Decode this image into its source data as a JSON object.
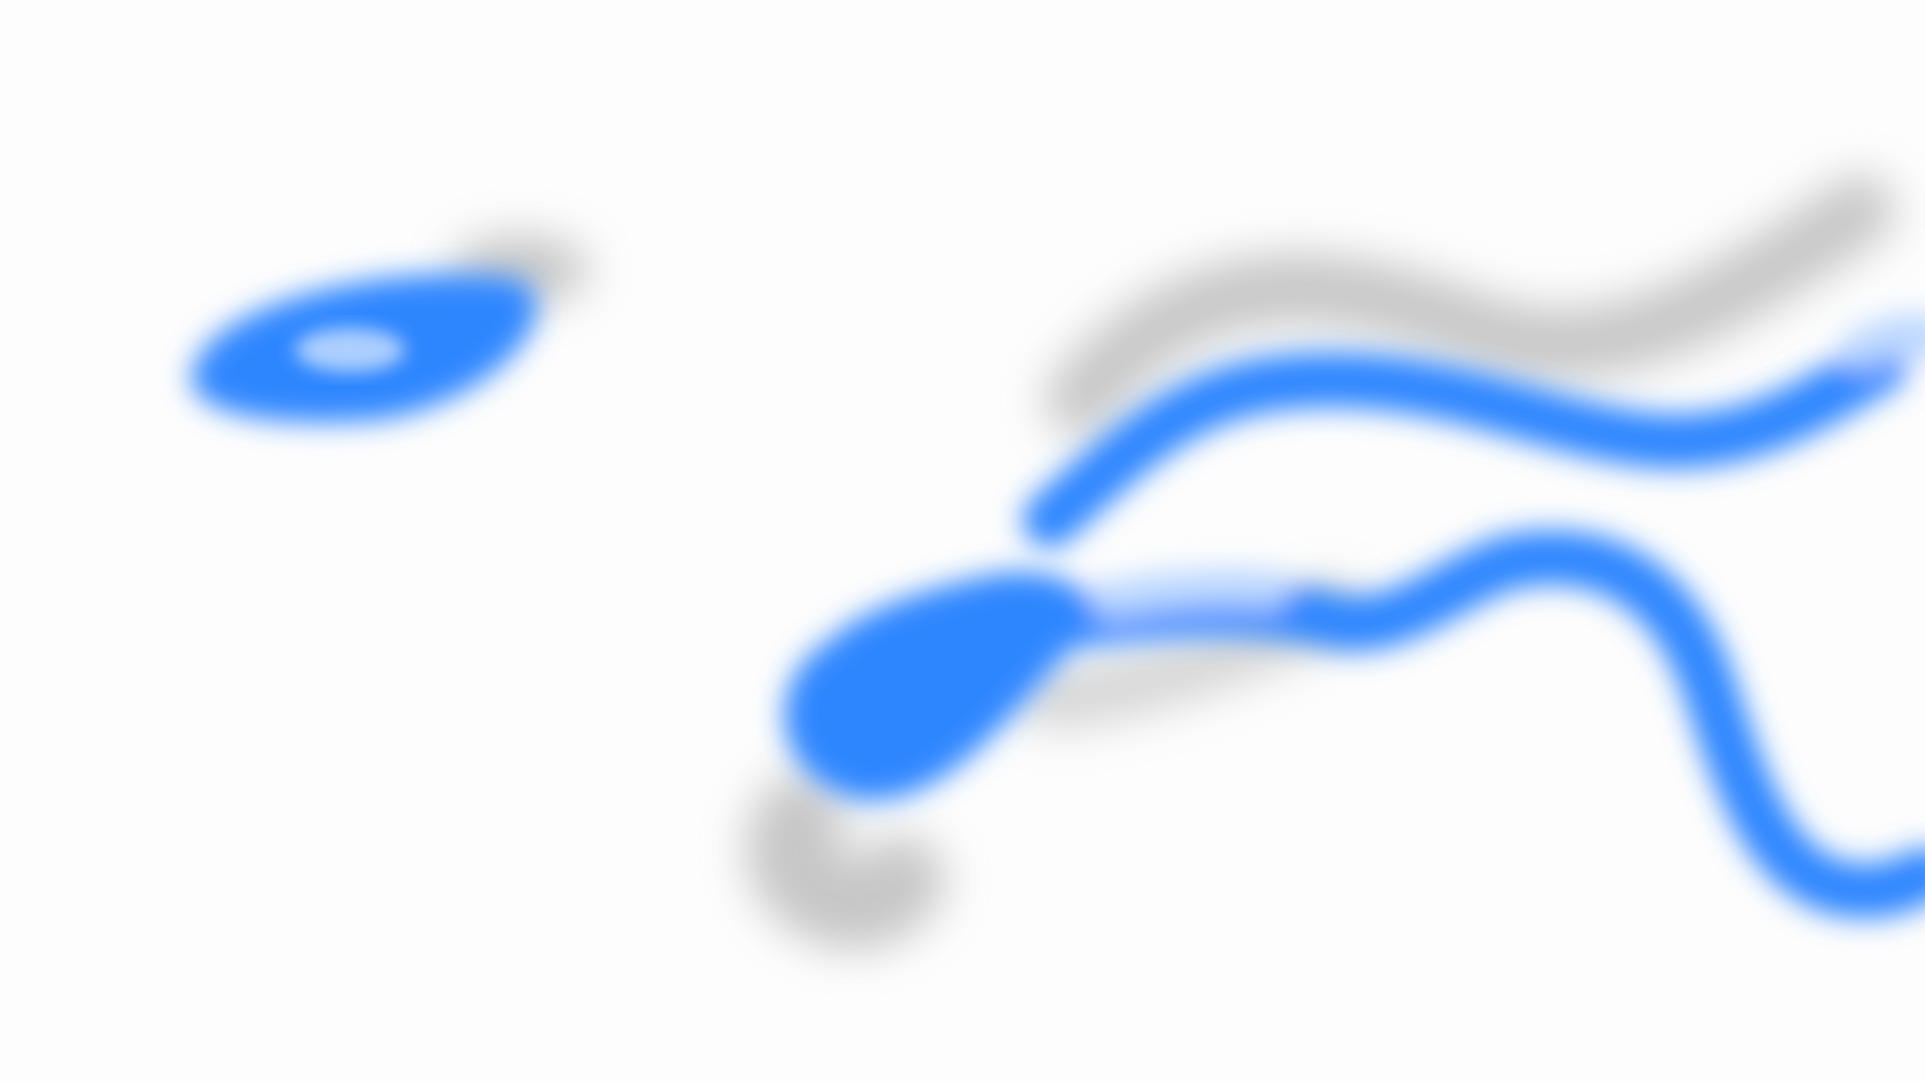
{
  "scene": {
    "background_color": "#fdfdfd",
    "stroke_color": "#2e86ff",
    "highlight_color": "#bcd8ff",
    "shadow_color": "#9a9a9a",
    "blurred": true
  }
}
